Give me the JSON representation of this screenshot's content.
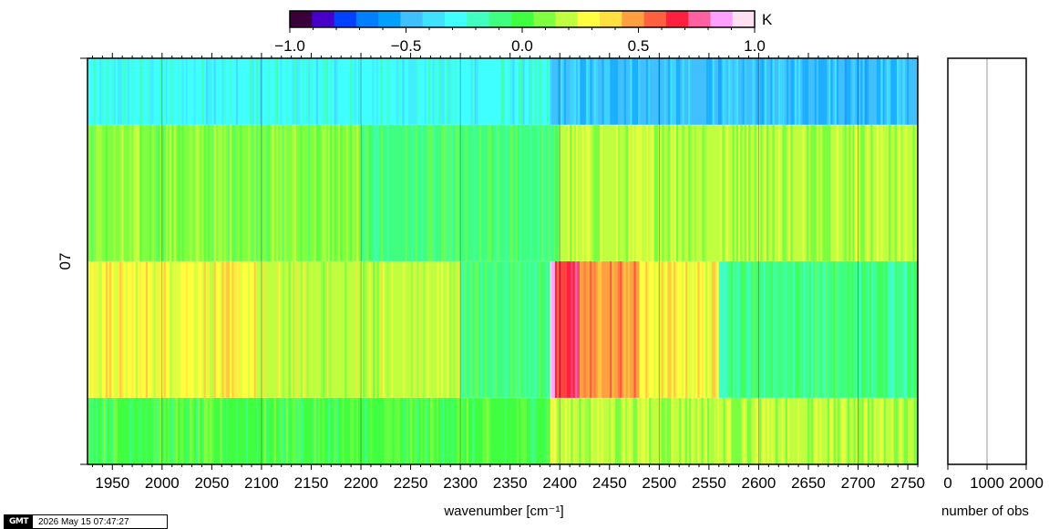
{
  "chart_data": {
    "type": "heatmap",
    "colorbar": {
      "unit": "K",
      "range": [
        -1.0,
        1.0
      ],
      "tick_labels": [
        "−1.0",
        "−0.5",
        "0.0",
        "0.5",
        "1.0"
      ],
      "tick_values": [
        -1.0,
        -0.5,
        0.0,
        0.5,
        1.0
      ],
      "colors": [
        "#3a0039",
        "#4600c8",
        "#0040ff",
        "#0080ff",
        "#00a0ff",
        "#40c0ff",
        "#40e0ff",
        "#40ffff",
        "#40ffc0",
        "#40ff80",
        "#40ff40",
        "#80ff40",
        "#c0ff40",
        "#ffff40",
        "#ffe040",
        "#ffa040",
        "#ff6040",
        "#ff2040",
        "#ff60a0",
        "#ffa0ff",
        "#ffe0f0"
      ]
    },
    "xlabel": "wavenumber [cm⁻¹]",
    "xlim": [
      1925,
      2760
    ],
    "x_tick_labels": [
      "1950",
      "2000",
      "2050",
      "2100",
      "2150",
      "2200",
      "2250",
      "2300",
      "2350",
      "2400",
      "2450",
      "2500",
      "2550",
      "2600",
      "2650",
      "2700",
      "2750"
    ],
    "x_ticks": [
      1950,
      2000,
      2050,
      2100,
      2150,
      2200,
      2250,
      2300,
      2350,
      2400,
      2450,
      2500,
      2550,
      2600,
      2650,
      2700,
      2750
    ],
    "ylabel": "07",
    "rows": [
      {
        "segments": [
          {
            "x": [
              1925,
              2390
            ],
            "value": -0.28
          },
          {
            "x": [
              2390,
              2760
            ],
            "value": -0.45
          }
        ]
      },
      {
        "segments": [
          {
            "x": [
              1925,
              2200
            ],
            "value": 0.1
          },
          {
            "x": [
              2200,
              2400
            ],
            "value": -0.05
          },
          {
            "x": [
              2400,
              2760
            ],
            "value": 0.15
          }
        ]
      },
      {
        "segments": [
          {
            "x": [
              1925,
              2095
            ],
            "value": 0.3
          },
          {
            "x": [
              2095,
              2300
            ],
            "value": 0.2
          },
          {
            "x": [
              2300,
              2390
            ],
            "value": -0.05
          },
          {
            "x": [
              2390,
              2395
            ],
            "value": 0.9
          },
          {
            "x": [
              2395,
              2420
            ],
            "value": 0.65
          },
          {
            "x": [
              2420,
              2480
            ],
            "value": 0.5
          },
          {
            "x": [
              2480,
              2560
            ],
            "value": 0.3
          },
          {
            "x": [
              2560,
              2760
            ],
            "value": -0.1
          }
        ]
      },
      {
        "segments": [
          {
            "x": [
              1925,
              2390
            ],
            "value": 0.0
          },
          {
            "x": [
              2390,
              2395
            ],
            "value": 0.3
          },
          {
            "x": [
              2395,
              2760
            ],
            "value": 0.15
          }
        ]
      }
    ],
    "side_panel": {
      "xlabel": "number of obs",
      "xlim": [
        0,
        2000
      ],
      "x_tick_labels": [
        "0",
        "1000",
        "2000"
      ],
      "x_ticks": [
        0,
        1000,
        2000
      ],
      "gridline_at": 1000
    }
  },
  "footer": {
    "logo": "GMT",
    "timestamp": "2026 May 15 07:47:27"
  }
}
